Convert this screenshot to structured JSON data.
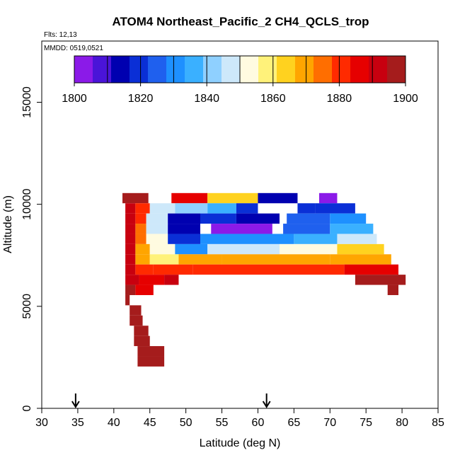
{
  "chart_data": {
    "type": "heatmap",
    "title": "ATOM4 Northeast_Pacific_2 CH4_QCLS_trop",
    "subtitle": "Flts: 12,13",
    "annotation": "MMDD: 0519,0521",
    "xlabel": "Latitude (deg N)",
    "ylabel": "Altitude (m)",
    "xlim": [
      30,
      85
    ],
    "ylim": [
      0,
      18000
    ],
    "x_ticks": [
      "30",
      "35",
      "40",
      "45",
      "50",
      "55",
      "60",
      "65",
      "70",
      "75",
      "80",
      "85"
    ],
    "y_ticks": [
      "0",
      "5000",
      "10000",
      "15000"
    ],
    "colorbar": {
      "min": 1800,
      "max": 1900,
      "tick_labels": [
        "1800",
        "1820",
        "1840",
        "1860",
        "1880",
        "1900"
      ],
      "colors": [
        "#8b1ae8",
        "#4a14d8",
        "#0000b0",
        "#0a2fd6",
        "#1f60ee",
        "#1e90ff",
        "#3ab0ff",
        "#8fd0ff",
        "#cde8fa",
        "#fffbe0",
        "#fff27a",
        "#ffd21f",
        "#ffa500",
        "#ff6e00",
        "#ff2a00",
        "#e60000",
        "#c8000f",
        "#a51c1c"
      ]
    },
    "markers_latitude": [
      34.7,
      61.2
    ],
    "rows": [
      {
        "alt": 10300,
        "segments": [
          [
            41.2,
            44.8,
            1895
          ],
          [
            48,
            53,
            1885
          ],
          [
            53,
            60,
            1862
          ],
          [
            60,
            65.5,
            1812
          ],
          [
            68.5,
            71,
            1805
          ]
        ]
      },
      {
        "alt": 9800,
        "segments": [
          [
            41.6,
            43,
            1893
          ],
          [
            43,
            45,
            1878
          ],
          [
            45,
            48.5,
            1845
          ],
          [
            48.5,
            53,
            1842
          ],
          [
            53,
            57,
            1836
          ],
          [
            57,
            60,
            1822
          ],
          [
            65.5,
            68,
            1818
          ],
          [
            68,
            73.5,
            1820
          ]
        ]
      },
      {
        "alt": 9300,
        "segments": [
          [
            41.6,
            43,
            1893
          ],
          [
            43,
            44.5,
            1878
          ],
          [
            44.5,
            47.5,
            1845
          ],
          [
            47.5,
            52,
            1815
          ],
          [
            52,
            57,
            1820
          ],
          [
            57,
            63,
            1812
          ],
          [
            64,
            70,
            1825
          ],
          [
            70,
            75,
            1828
          ]
        ]
      },
      {
        "alt": 8800,
        "segments": [
          [
            41.6,
            43,
            1893
          ],
          [
            43,
            44.5,
            1876
          ],
          [
            44.5,
            47.5,
            1848
          ],
          [
            47.5,
            52,
            1815
          ],
          [
            53.5,
            62,
            1805
          ],
          [
            63.5,
            70,
            1825
          ],
          [
            70,
            76,
            1835
          ]
        ]
      },
      {
        "alt": 8300,
        "segments": [
          [
            41.6,
            43,
            1893
          ],
          [
            43,
            44.5,
            1875
          ],
          [
            44.5,
            47.5,
            1850
          ],
          [
            47.5,
            52,
            1822
          ],
          [
            52,
            65,
            1828
          ],
          [
            65,
            71,
            1835
          ],
          [
            71,
            76.5,
            1845
          ]
        ]
      },
      {
        "alt": 7800,
        "segments": [
          [
            41.6,
            43,
            1893
          ],
          [
            43,
            45,
            1872
          ],
          [
            45,
            48.5,
            1855
          ],
          [
            48.5,
            53,
            1830
          ],
          [
            53,
            63,
            1845
          ],
          [
            63,
            71,
            1850
          ],
          [
            71,
            77.5,
            1862
          ]
        ]
      },
      {
        "alt": 7300,
        "segments": [
          [
            41.6,
            43,
            1893
          ],
          [
            43,
            45,
            1870
          ],
          [
            45,
            49,
            1858
          ],
          [
            49,
            55,
            1867
          ],
          [
            55,
            70,
            1868
          ],
          [
            70,
            78.5,
            1872
          ]
        ]
      },
      {
        "alt": 6800,
        "segments": [
          [
            41.6,
            43,
            1893
          ],
          [
            43,
            45.5,
            1878
          ],
          [
            45.5,
            51,
            1878
          ],
          [
            51,
            63,
            1882
          ],
          [
            63,
            72,
            1878
          ],
          [
            72,
            79.5,
            1885
          ]
        ]
      },
      {
        "alt": 6300,
        "segments": [
          [
            41.6,
            43.5,
            1893
          ],
          [
            43.5,
            47,
            1885
          ],
          [
            47,
            49,
            1890
          ],
          [
            73.5,
            80.5,
            1897
          ]
        ]
      },
      {
        "alt": 5800,
        "segments": [
          [
            41.6,
            43,
            1895
          ],
          [
            43,
            45.5,
            1888
          ],
          [
            78,
            79.5,
            1897
          ]
        ]
      },
      {
        "alt": 5300,
        "segments": [
          [
            41.6,
            42.2,
            1897
          ]
        ]
      },
      {
        "alt": 4800,
        "segments": [
          [
            42.2,
            43.8,
            1897
          ]
        ]
      },
      {
        "alt": 4300,
        "segments": [
          [
            42.2,
            44,
            1897
          ]
        ]
      },
      {
        "alt": 3800,
        "segments": [
          [
            42.8,
            44.8,
            1897
          ]
        ]
      },
      {
        "alt": 3300,
        "segments": [
          [
            42.8,
            45,
            1897
          ]
        ]
      },
      {
        "alt": 2800,
        "segments": [
          [
            43.3,
            47,
            1897
          ]
        ]
      },
      {
        "alt": 2300,
        "segments": [
          [
            43.3,
            47,
            1897
          ]
        ]
      }
    ],
    "row_height": 500
  }
}
